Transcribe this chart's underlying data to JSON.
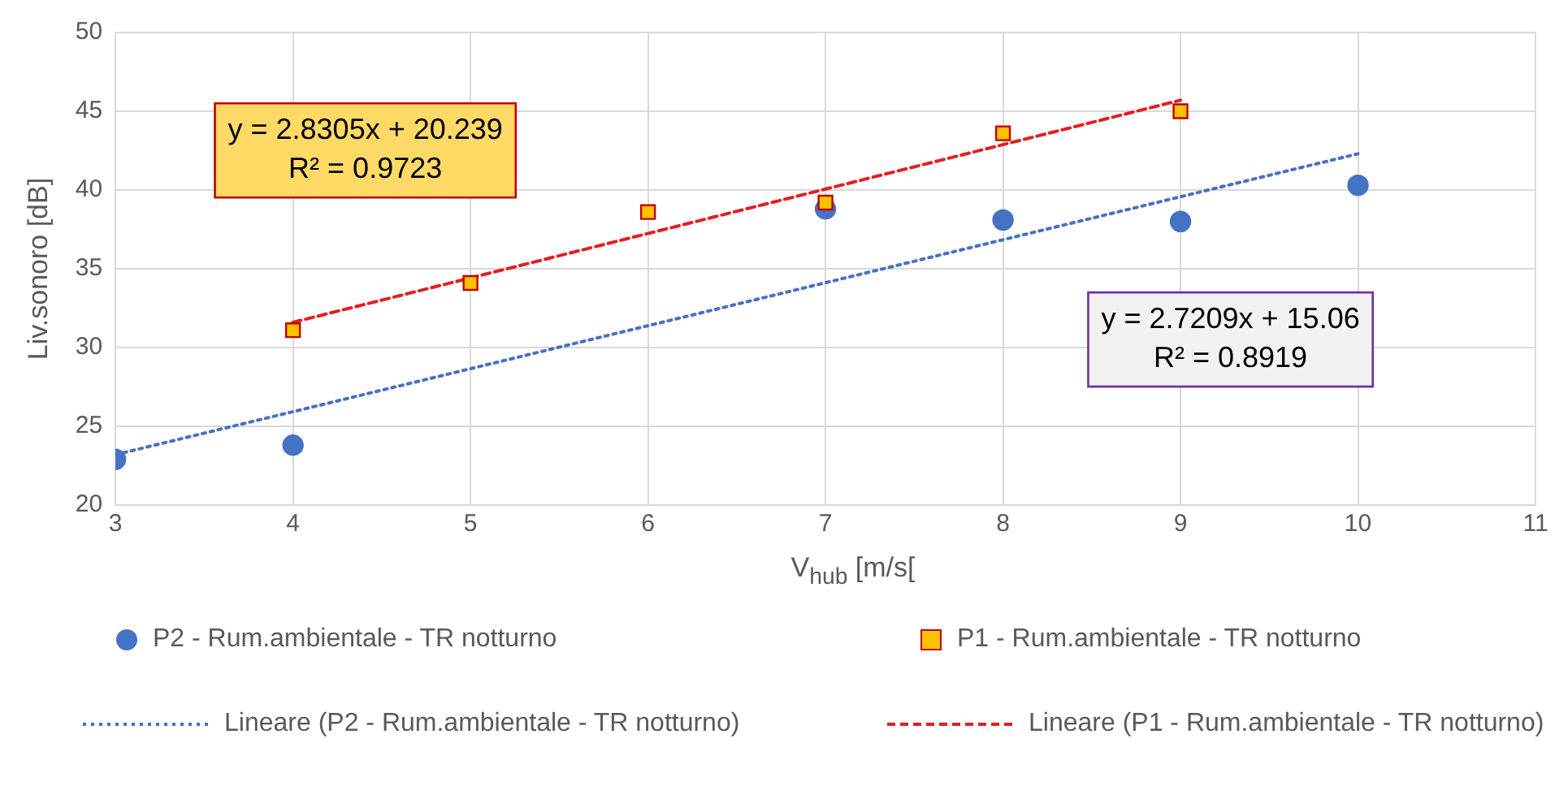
{
  "chart_data": {
    "type": "scatter",
    "xlabel": "V$_{hub}$ [m/s[",
    "ylabel": "Liv.sonoro [dB]",
    "xlim": [
      3,
      11
    ],
    "xticks": [
      3,
      4,
      5,
      6,
      7,
      8,
      9,
      10,
      11
    ],
    "ylim": [
      20,
      50
    ],
    "yticks": [
      20,
      25,
      30,
      35,
      40,
      45,
      50
    ],
    "grid": true,
    "legend": "bottom",
    "series": [
      {
        "name": "P2 - Rum.ambientale - TR notturno",
        "type": "scatter",
        "marker": "circle",
        "color": "#4472c4",
        "x": [
          3,
          4,
          7,
          8,
          9,
          10
        ],
        "values": [
          22.9,
          23.8,
          38.8,
          38.1,
          38.0,
          40.3
        ]
      },
      {
        "name": "P1 - Rum.ambientale - TR notturno",
        "type": "scatter",
        "marker": "square",
        "color": "#ffc000",
        "x": [
          4,
          5,
          6,
          7,
          8,
          9
        ],
        "values": [
          31.1,
          34.1,
          38.6,
          39.2,
          43.6,
          45.0
        ]
      },
      {
        "name": "Lineare (P2 - Rum.ambientale - TR notturno)",
        "type": "line",
        "marker": "none",
        "line_style": "dotted",
        "color": "#4472c4",
        "x": [
          3,
          10
        ],
        "values": [
          23.2,
          42.3
        ]
      },
      {
        "name": "Lineare (P1 - Rum.ambientale - TR notturno)",
        "type": "line",
        "marker": "none",
        "line_style": "dashed",
        "color": "#e02020",
        "x": [
          4,
          9
        ],
        "values": [
          31.6,
          45.7
        ]
      }
    ],
    "annotations": [
      "y = 2.8305x + 20.239\nR² = 0.9723",
      "y = 2.7209x + 15.06\nR² = 0.8919"
    ]
  }
}
